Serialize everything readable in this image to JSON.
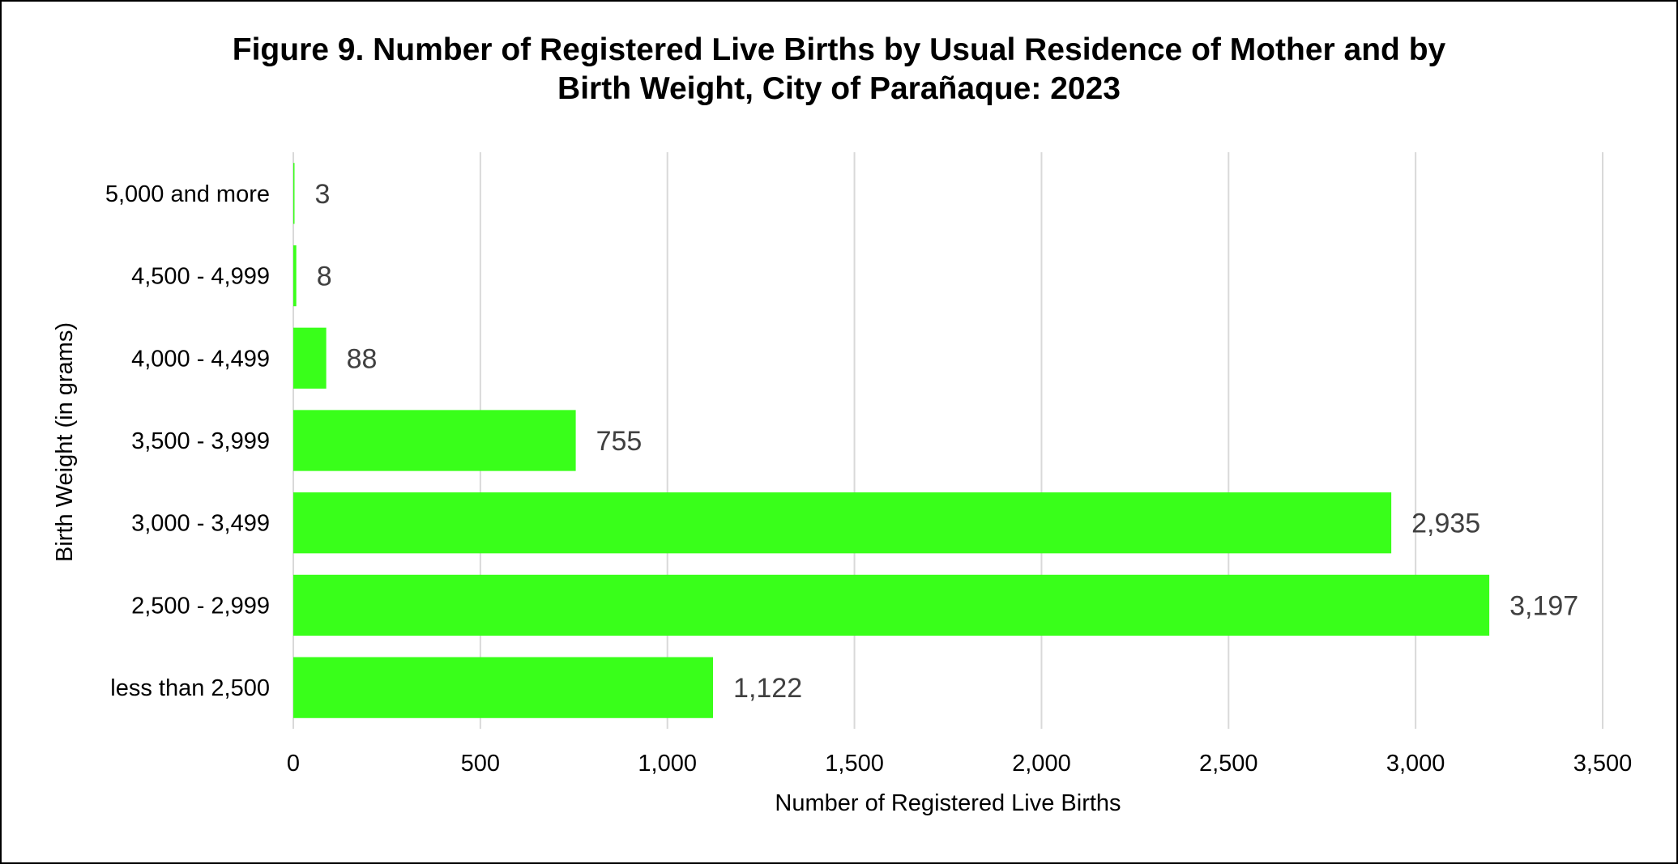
{
  "chart_data": {
    "type": "bar",
    "orientation": "horizontal",
    "title_line1": "Figure 9. Number of Registered Live Births by Usual Residence of Mother and by",
    "title_line2": "Birth Weight, City of Parañaque: 2023",
    "xlabel": "Number of Registered Live Births",
    "ylabel": "Birth Weight (in grams)",
    "categories": [
      "5,000 and more",
      "4,500 - 4,999",
      "4,000 - 4,499",
      "3,500 - 3,999",
      "3,000 - 3,499",
      "2,500 - 2,999",
      "less than 2,500"
    ],
    "values": [
      3,
      8,
      88,
      755,
      2935,
      3197,
      1122
    ],
    "value_labels": [
      "3",
      "8",
      "88",
      "755",
      "2,935",
      "3,197",
      "1,122"
    ],
    "xlim": [
      0,
      3500
    ],
    "xticks": [
      0,
      500,
      1000,
      1500,
      2000,
      2500,
      3000,
      3500
    ],
    "xtick_labels": [
      "0",
      "500",
      "1,000",
      "1,500",
      "2,000",
      "2,500",
      "3,000",
      "3,500"
    ],
    "grid": "vertical",
    "legend": "none",
    "colors": {
      "bar": "#39ff1a",
      "grid": "#d9d9d9",
      "label": "#404040"
    }
  }
}
